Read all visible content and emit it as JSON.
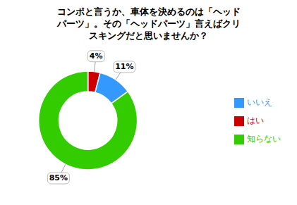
{
  "chart_data": {
    "type": "pie",
    "title": "コンポと言うか、車体を決めるのは「ヘッド\nパーツ」。その「ヘッドパーツ」言えばクリ\nスキングだと思いませんか？",
    "categories": [
      "はい",
      "いいえ",
      "知らない"
    ],
    "values": [
      4,
      11,
      85
    ],
    "value_labels": [
      "4%",
      "11%",
      "85%"
    ],
    "colors": [
      "#cc0000",
      "#3399ff",
      "#33cc00"
    ],
    "data_labels": true,
    "legend": "right"
  }
}
